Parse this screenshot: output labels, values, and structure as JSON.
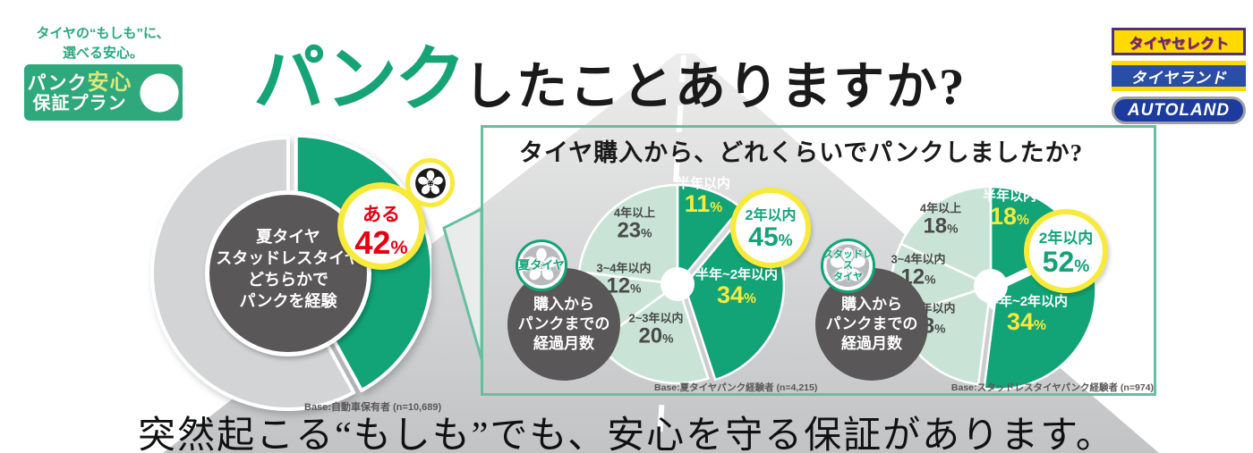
{
  "misc": {
    "percent_sign": "%"
  },
  "colors": {
    "dark": "#12a377",
    "light": "#c9e4d6",
    "gray": "#d2d4d5",
    "accent_yellow": "#f7ea3b",
    "accent_red": "#e50012",
    "badge_green": "#2fa87c",
    "circle_gray": "#595757",
    "box_border": "#66c09f"
  },
  "tagline": {
    "line1": "タイヤの“もしも”に、",
    "line2": "選べる安心。"
  },
  "logo_badge": {
    "line1_part1": "パンク",
    "line1_part2": "安心",
    "line2": "保証プラン"
  },
  "title": {
    "highlight": "パンク",
    "rest": "したことありますか?"
  },
  "partner_logos": [
    {
      "label": "タイヤセレクト"
    },
    {
      "label": "タイヤランド"
    },
    {
      "label": "AUTOLAND"
    }
  ],
  "question_box": {
    "title": "タイヤ購入から、どれくらいでパンクしましたか?"
  },
  "footer": {
    "text": "突然起こる“もしも”でも、安心を守る保証があります。"
  },
  "chart_data": [
    {
      "id": "puncture-experience",
      "type": "pie",
      "title": "パンクしたことありますか?",
      "center_lines": [
        "夏タイヤ",
        "スタッドレスタイヤ",
        "どちらかで",
        "パンクを経験"
      ],
      "slices": [
        {
          "name": "ある",
          "value": 42,
          "tone": "dark",
          "exploded": true
        },
        {
          "name": "",
          "value": 58,
          "tone": "gray"
        }
      ],
      "callout": {
        "name": "ある",
        "value": 42
      },
      "note": "Base:自動車保有者 (n=10,689)"
    },
    {
      "id": "summer-tire-months-to-puncture",
      "type": "pie",
      "group_lines": [
        "夏タイヤ"
      ],
      "desc_lines": [
        "購入から",
        "パンクまでの",
        "経過月数"
      ],
      "slices": [
        {
          "name": "半年以内",
          "value": 11,
          "tone": "dark"
        },
        {
          "name": "半年~2年以内",
          "value": 34,
          "tone": "dark",
          "exploded": true
        },
        {
          "name": "2~3年以内",
          "value": 20,
          "tone": "light"
        },
        {
          "name": "3~4年以内",
          "value": 12,
          "tone": "light"
        },
        {
          "name": "4年以上",
          "value": 23,
          "tone": "light"
        }
      ],
      "callout": {
        "name": "2年以内",
        "value": 45
      },
      "note": "Base:夏タイヤパンク経験者 (n=4,215)"
    },
    {
      "id": "studless-tire-months-to-puncture",
      "type": "pie",
      "group_lines": [
        "スタッドレス",
        "タイヤ"
      ],
      "desc_lines": [
        "購入から",
        "パンクまでの",
        "経過月数"
      ],
      "slices": [
        {
          "name": "半年以内",
          "value": 18,
          "tone": "dark"
        },
        {
          "name": "半年~2年以内",
          "value": 34,
          "tone": "dark",
          "exploded": true
        },
        {
          "name": "2~3年以内",
          "value": 18,
          "tone": "light"
        },
        {
          "name": "3~4年以内",
          "value": 12,
          "tone": "light"
        },
        {
          "name": "4年以上",
          "value": 18,
          "tone": "light"
        }
      ],
      "callout": {
        "name": "2年以内",
        "value": 52
      },
      "note": "Base:スタッドレスタイヤパンク経験者 (n=974)"
    }
  ]
}
